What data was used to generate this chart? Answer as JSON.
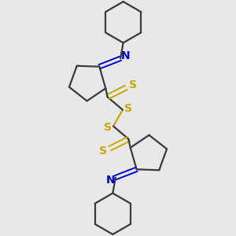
{
  "bg_color": "#e8e8e8",
  "line_color": "#3a3a3a",
  "sulfur_color": "#c8a800",
  "nitrogen_color": "#0000cc",
  "lw": 1.6,
  "lw_thin": 1.4,
  "figsize": [
    3.0,
    3.0
  ],
  "dpi": 100,
  "xlim": [
    0,
    10
  ],
  "ylim": [
    0,
    10
  ]
}
